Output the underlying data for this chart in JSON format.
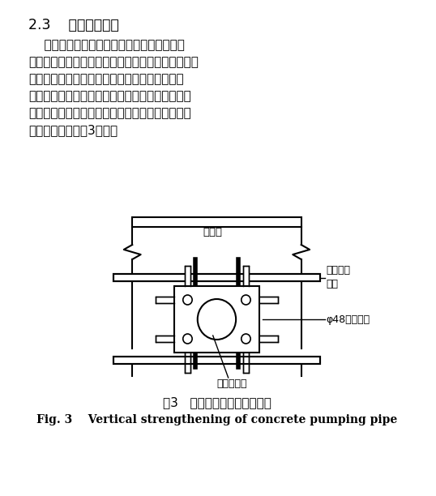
{
  "title_section": "2.3    泵管加固措施",
  "body_text": [
    "    整个底板均采用混凝土固定泵浇筑。由于基",
    "坑较深，泵管必须按阶梯形设置，防止堵管，泵管架",
    "需与基坑腰棁拉接以提高稳定性。为避免泵管振",
    "动影响底板钉筋位置，泵管需架设在支设的钉管架",
    "上，在钉筋面上采用垫橡胶轮胎的措施，缓冲输送",
    "泵的冲击力。如图3所示。"
  ],
  "fig_caption_cn": "图3   混凝土泵管竖向加固示意",
  "fig_caption_en": "Fig. 3    Vertical strengthening of concrete pumping pipe",
  "label_hubizhuan": "护壁桩",
  "label_yuhubizhuan": "与护壁桩\n固定",
  "label_phi48": "φ48钉管支架",
  "label_pump": "混凝土泵管",
  "bg_color": "#ffffff",
  "line_color": "#000000",
  "text_color": "#000000"
}
